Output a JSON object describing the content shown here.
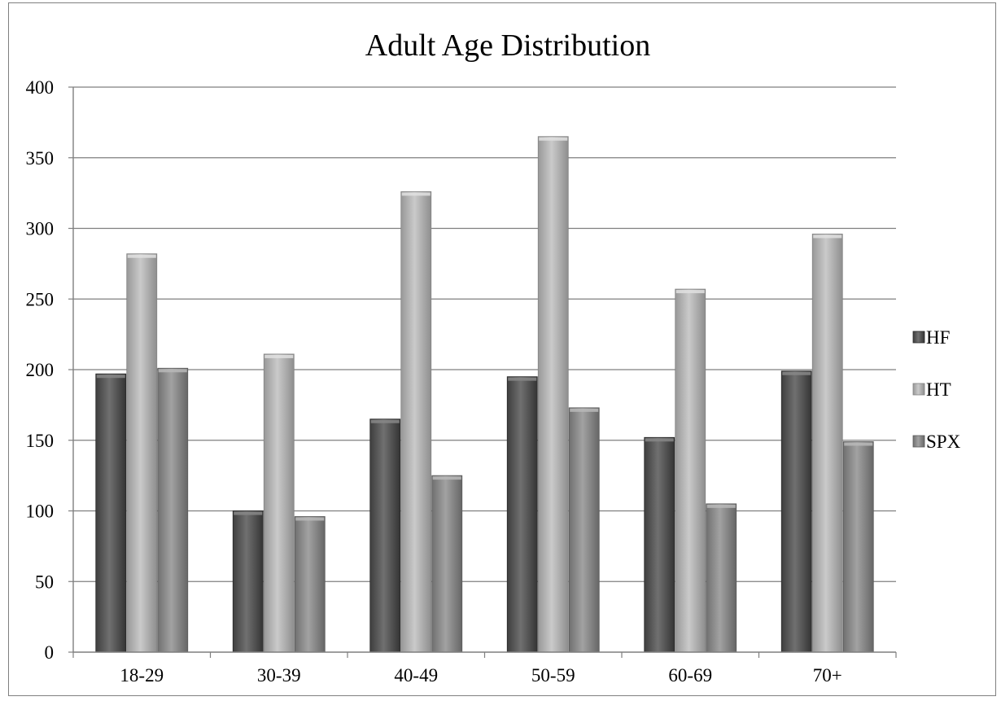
{
  "chart_data": {
    "type": "bar",
    "title": "Adult Age Distribution",
    "xlabel": "",
    "ylabel": "",
    "categories": [
      "18-29",
      "30-39",
      "40-49",
      "50-59",
      "60-69",
      "70+"
    ],
    "series": [
      {
        "name": "HF",
        "values": [
          197,
          100,
          165,
          195,
          152,
          199
        ],
        "color": "#5a5a5a"
      },
      {
        "name": "HT",
        "values": [
          282,
          211,
          326,
          365,
          257,
          296
        ],
        "color": "#b4b4b4"
      },
      {
        "name": "SPX",
        "values": [
          201,
          96,
          125,
          173,
          105,
          149
        ],
        "color": "#8c8c8c"
      }
    ],
    "ylim": [
      0,
      400
    ],
    "yticks": [
      0,
      50,
      100,
      150,
      200,
      250,
      300,
      350,
      400
    ],
    "grid": true,
    "legend": "right"
  }
}
